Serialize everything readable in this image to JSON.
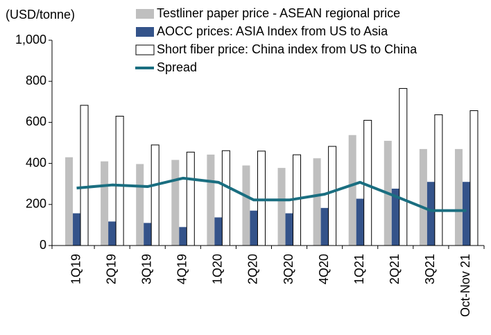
{
  "chart_data": {
    "type": "bar",
    "y_label": "(USD/tonne)",
    "categories": [
      "1Q19",
      "2Q19",
      "3Q19",
      "4Q19",
      "1Q20",
      "2Q20",
      "3Q20",
      "4Q20",
      "1Q21",
      "2Q21",
      "3Q21",
      "Oct-Nov 21"
    ],
    "series": [
      {
        "name": "Testliner paper price - ASEAN regional price",
        "type": "bar",
        "color": "#bfbfbf",
        "values": [
          430,
          410,
          397,
          417,
          443,
          390,
          378,
          425,
          538,
          510,
          470,
          470
        ]
      },
      {
        "name": "AOCC prices: ASIA Index from US to Asia",
        "type": "bar",
        "color": "#34538a",
        "values": [
          157,
          117,
          110,
          90,
          137,
          170,
          157,
          183,
          228,
          277,
          310,
          310
        ]
      },
      {
        "name": "Short fiber price: China index from US to China",
        "type": "bar",
        "color": "#ffffff",
        "values": [
          683,
          630,
          490,
          455,
          462,
          460,
          442,
          483,
          610,
          765,
          637,
          657
        ]
      },
      {
        "name": "Spread",
        "type": "line",
        "color": "#1a6e80",
        "values": [
          280,
          295,
          287,
          328,
          308,
          222,
          222,
          250,
          308,
          240,
          170,
          170
        ]
      }
    ],
    "ylim": [
      0,
      1000
    ],
    "yticks": [
      0,
      200,
      400,
      600,
      800,
      {
        "value": 1000,
        "label": "1,000"
      }
    ],
    "grid": false
  }
}
